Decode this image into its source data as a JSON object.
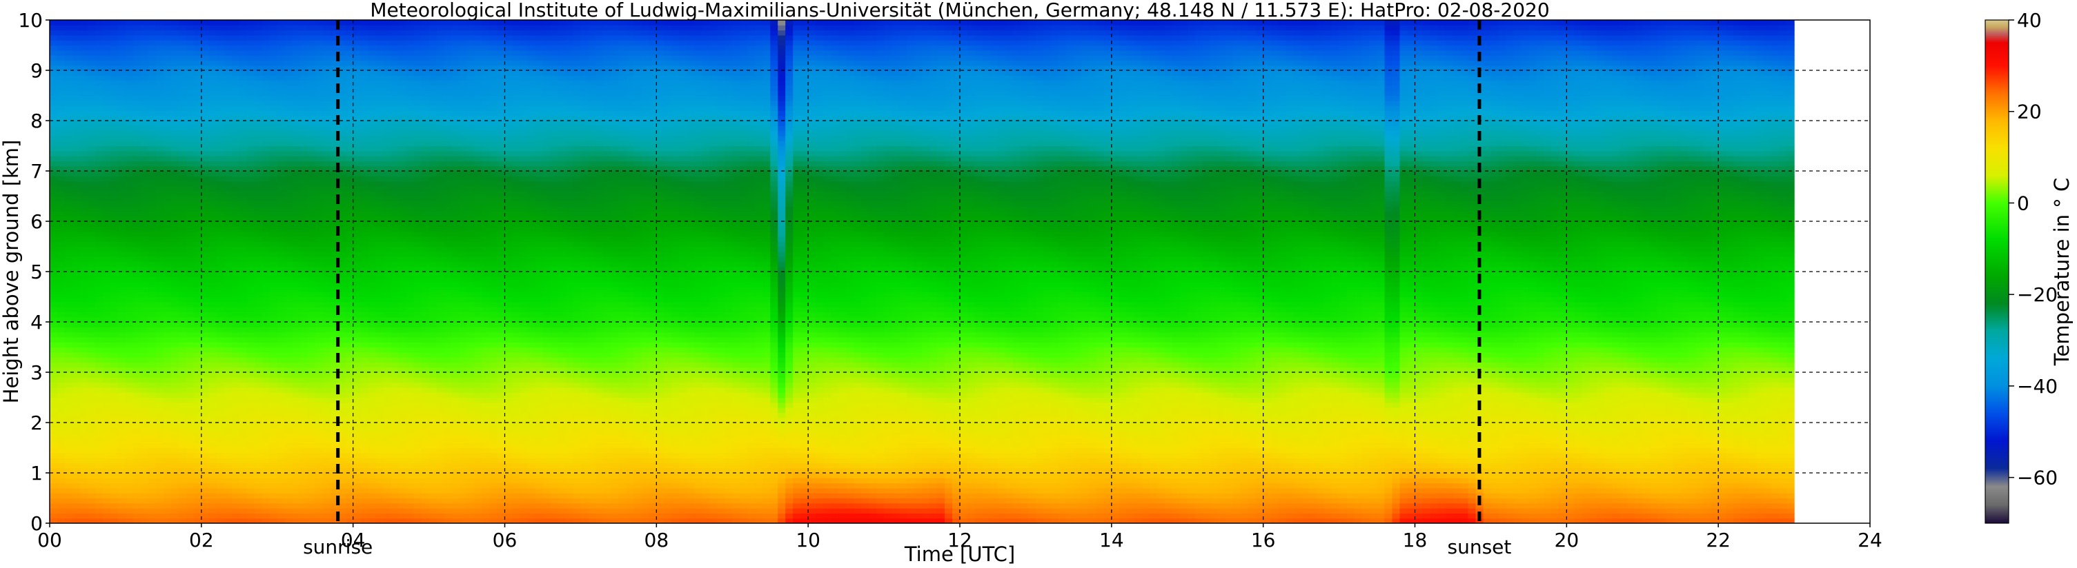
{
  "chart_data": {
    "type": "heatmap",
    "title": "Meteorological Institute of Ludwig-Maximilians-Universität (München, Germany; 48.148 N / 11.573 E):    HatPro: 02-08-2020",
    "xlabel": "Time [UTC]",
    "ylabel": "Height above ground [km]",
    "xlim": [
      0,
      24
    ],
    "ylim": [
      0,
      10
    ],
    "x_tick_labels": [
      "00",
      "02",
      "04",
      "06",
      "08",
      "10",
      "12",
      "14",
      "16",
      "18",
      "20",
      "22",
      "24"
    ],
    "y_tick_labels": [
      "0",
      "1",
      "2",
      "3",
      "4",
      "5",
      "6",
      "7",
      "8",
      "9",
      "10"
    ],
    "grid": true,
    "data_end_hour": 23,
    "colorbar": {
      "label": "Temperature in ° C",
      "range": [
        -70,
        40
      ],
      "ticks": [
        "40",
        "20",
        "0",
        "−20",
        "−40",
        "−60"
      ],
      "colors": [
        [
          -70,
          "#1a0a3a"
        ],
        [
          -66,
          "#6a6a6a"
        ],
        [
          -62,
          "#8a8a8a"
        ],
        [
          -58,
          "#0a2a9a"
        ],
        [
          -52,
          "#0016d0"
        ],
        [
          -46,
          "#0050e8"
        ],
        [
          -40,
          "#0090e0"
        ],
        [
          -34,
          "#00a8d8"
        ],
        [
          -28,
          "#00a8a0"
        ],
        [
          -22,
          "#008a20"
        ],
        [
          -16,
          "#00a800"
        ],
        [
          -8,
          "#00dc00"
        ],
        [
          0,
          "#44ff00"
        ],
        [
          6,
          "#d8f000"
        ],
        [
          12,
          "#f8e000"
        ],
        [
          18,
          "#ffb800"
        ],
        [
          24,
          "#ff7000"
        ],
        [
          30,
          "#ff1000"
        ],
        [
          35,
          "#ee0000"
        ],
        [
          37,
          "#c06060"
        ],
        [
          38.5,
          "#c8aa60"
        ],
        [
          40,
          "#d8c890"
        ]
      ]
    },
    "temperature_profile": {
      "heights_km": [
        0,
        0.5,
        1,
        1.5,
        2,
        2.5,
        3,
        3.5,
        4,
        5,
        6,
        6.5,
        7,
        7.5,
        8,
        8.5,
        9,
        9.5,
        10
      ],
      "temperatures_c": [
        25,
        20,
        16,
        12,
        9,
        6,
        3,
        0,
        -5,
        -10,
        -17,
        -20,
        -23,
        -28,
        -33,
        -38,
        -41,
        -45,
        -51
      ]
    },
    "warm_events": [
      {
        "start": 9.55,
        "end": 12.0,
        "peak_offset_c": 7
      },
      {
        "start": 17.6,
        "end": 18.95,
        "peak_offset_c": 6
      }
    ],
    "cold_plumes": [
      {
        "center": 9.65,
        "intensity": 1.0
      },
      {
        "center": 17.7,
        "intensity": 0.5
      }
    ],
    "markers": [
      {
        "label": "sunrise",
        "hour": 3.8
      },
      {
        "label": "sunset",
        "hour": 18.85
      }
    ]
  }
}
